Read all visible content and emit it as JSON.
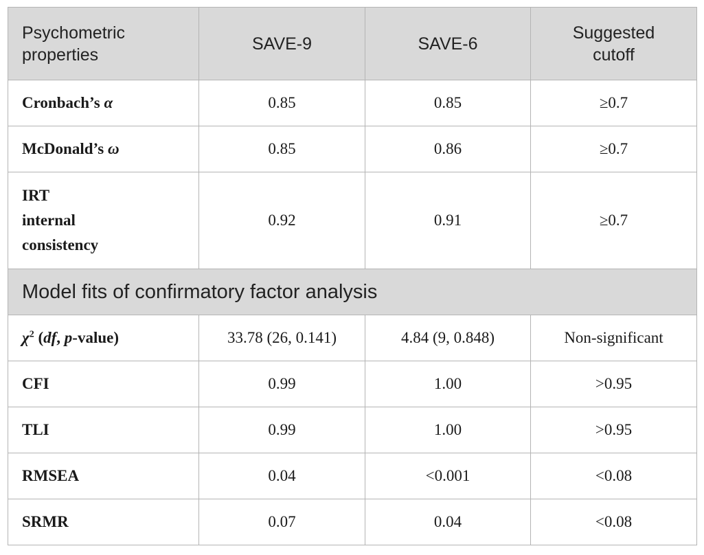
{
  "header": {
    "col1_line1": "Psychometric",
    "col1_line2": "properties",
    "col2": "SAVE-9",
    "col3": "SAVE-6",
    "col4_line1": "Suggested",
    "col4_line2": "cutoff"
  },
  "reliability_rows": [
    {
      "label_text": "Cronbach’s ",
      "label_symbol": "α",
      "save9": "0.85",
      "save6": "0.85",
      "cutoff": "≥0.7"
    },
    {
      "label_text": "McDonald’s ",
      "label_symbol": "ω",
      "save9": "0.85",
      "save6": "0.86",
      "cutoff": "≥0.7"
    },
    {
      "label_line1": "IRT",
      "label_line2": "internal",
      "label_line3": "consistency",
      "save9": "0.92",
      "save6": "0.91",
      "cutoff": "≥0.7"
    }
  ],
  "section_title": "Model fits of confirmatory factor analysis",
  "chi_row": {
    "symbol": "χ",
    "sup": "2",
    "open": " (",
    "df": "df",
    "sep": ", ",
    "p": "p",
    "rest": "-value)",
    "save9": "33.78 (26, 0.141)",
    "save6": "4.84 (9, 0.848)",
    "cutoff": "Non-significant"
  },
  "fit_rows": [
    {
      "label": "CFI",
      "save9": "0.99",
      "save6": "1.00",
      "cutoff": ">0.95"
    },
    {
      "label": "TLI",
      "save9": "0.99",
      "save6": "1.00",
      "cutoff": ">0.95"
    },
    {
      "label": "RMSEA",
      "save9": "0.04",
      "save6": "<0.001",
      "cutoff": "<0.08"
    },
    {
      "label": "SRMR",
      "save9": "0.07",
      "save6": "0.04",
      "cutoff": "<0.08"
    }
  ]
}
